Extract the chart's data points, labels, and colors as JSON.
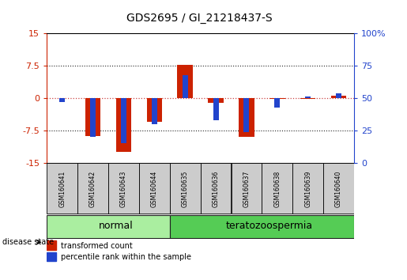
{
  "title": "GDS2695 / GI_21218437-S",
  "samples": [
    "GSM160641",
    "GSM160642",
    "GSM160643",
    "GSM160644",
    "GSM160635",
    "GSM160636",
    "GSM160637",
    "GSM160638",
    "GSM160639",
    "GSM160640"
  ],
  "red_values": [
    0.0,
    -8.8,
    -12.5,
    -5.5,
    7.8,
    -1.0,
    -9.0,
    -0.2,
    -0.2,
    0.5
  ],
  "blue_values_raw": [
    47,
    20,
    15,
    30,
    68,
    33,
    24,
    43,
    51,
    54
  ],
  "ylim": [
    -15,
    15
  ],
  "y_ticks_red": [
    -15,
    -7.5,
    0,
    7.5,
    15
  ],
  "y_ticks_blue": [
    0,
    25,
    50,
    75,
    100
  ],
  "red_bar_width": 0.5,
  "blue_bar_width": 0.18,
  "red_color": "#CC2200",
  "blue_color": "#2244CC",
  "zero_line_color": "#CC4444",
  "dot_line_color": "#222222",
  "bg_color": "#FFFFFF",
  "sample_box_color": "#CCCCCC",
  "normal_color": "#AAEEA0",
  "terat_color": "#55CC55",
  "normal_label": "normal",
  "terat_label": "teratozoospermia",
  "disease_state_label": "disease state",
  "legend_red": "transformed count",
  "legend_blue": "percentile rank within the sample",
  "title_fontsize": 10,
  "tick_fontsize": 8,
  "sample_fontsize": 5.5,
  "group_fontsize": 9,
  "legend_fontsize": 7,
  "disease_fontsize": 7
}
